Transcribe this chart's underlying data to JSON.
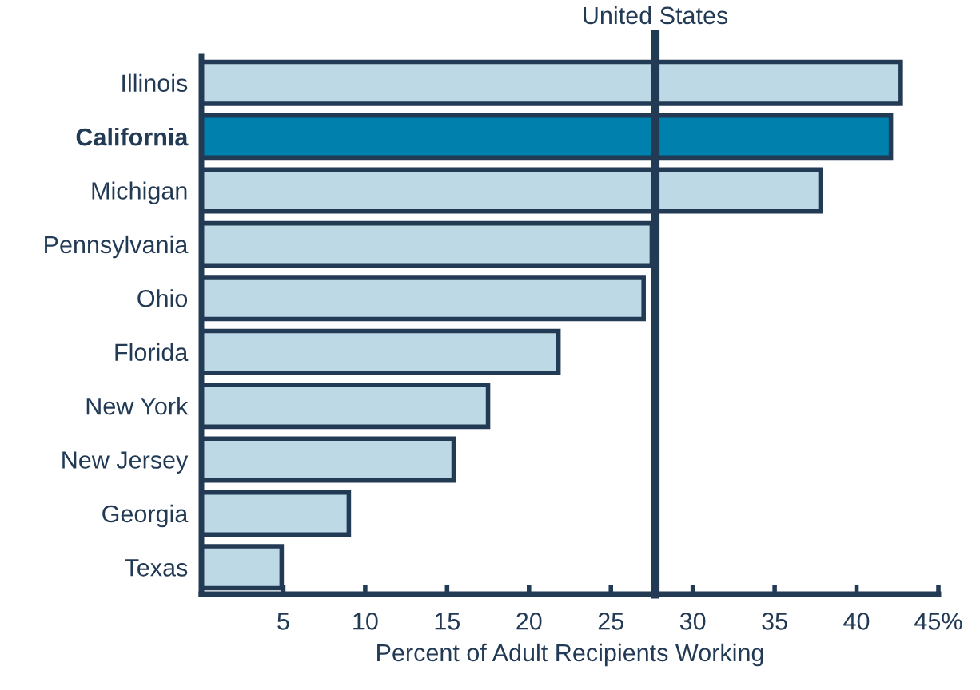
{
  "chart_data": {
    "type": "bar",
    "orientation": "horizontal",
    "xlabel": "Percent of Adult Recipients Working",
    "categories": [
      "Illinois",
      "California",
      "Michigan",
      "Pennsylvania",
      "Ohio",
      "Florida",
      "New York",
      "New Jersey",
      "Georgia",
      "Texas"
    ],
    "values": [
      42.7,
      42.1,
      37.8,
      27.5,
      27.0,
      21.8,
      17.5,
      15.4,
      9.0,
      4.9
    ],
    "colors": [
      "#bdd9e6",
      "#0080ad",
      "#bdd9e6",
      "#bdd9e6",
      "#bdd9e6",
      "#bdd9e6",
      "#bdd9e6",
      "#bdd9e6",
      "#bdd9e6",
      "#bdd9e6"
    ],
    "xlim": [
      0,
      45
    ],
    "xticks": [
      5,
      10,
      15,
      20,
      25,
      30,
      35,
      40,
      {
        "value": 45,
        "label": "45%"
      }
    ],
    "ref_lines": [
      {
        "axis": "x",
        "value": 27.7,
        "label": "United States",
        "color": "#233a55"
      }
    ],
    "grid": false,
    "legend": false
  }
}
